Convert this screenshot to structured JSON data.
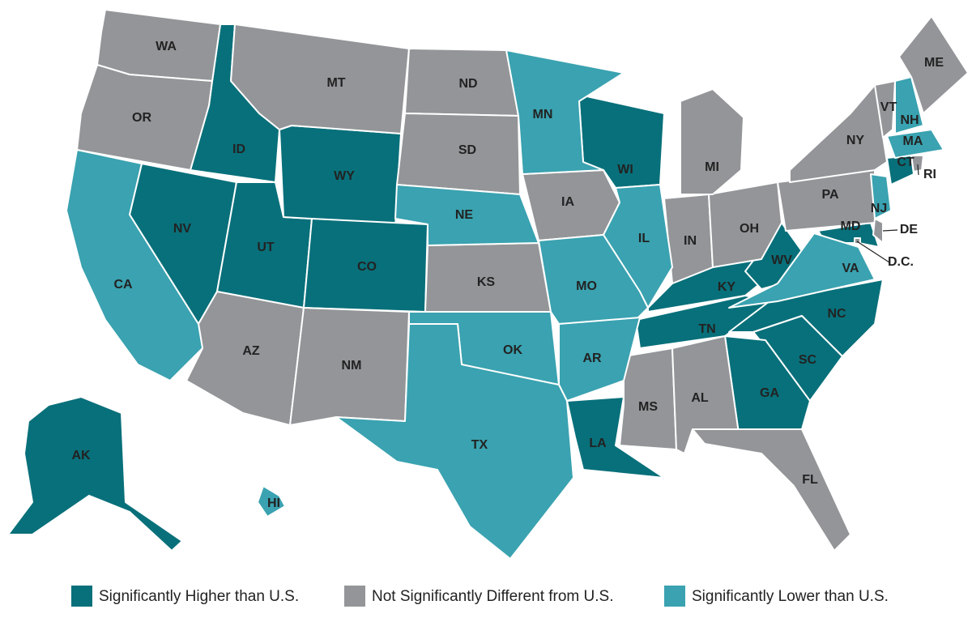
{
  "groups": [
    {
      "label": "Significantly Higher than U.S.",
      "color": "#08707a",
      "states": [
        "AK",
        "ID",
        "NV",
        "UT",
        "WY",
        "CO",
        "WI",
        "KY",
        "WV",
        "TN",
        "NC",
        "SC",
        "GA",
        "LA",
        "CT",
        "MD"
      ]
    },
    {
      "label": "Not Significantly Different from U.S.",
      "color": "#939598",
      "states": [
        "WA",
        "OR",
        "MT",
        "ND",
        "SD",
        "KS",
        "IA",
        "AZ",
        "NM",
        "MS",
        "AL",
        "FL",
        "IN",
        "OH",
        "MI",
        "PA",
        "NY",
        "VT",
        "ME",
        "DE",
        "RI",
        "D.C."
      ]
    },
    {
      "label": "Significantly Lower than U.S.",
      "color": "#3aa2b0",
      "states": [
        "CA",
        "NE",
        "MN",
        "IL",
        "MO",
        "OK",
        "AR",
        "TX",
        "VA",
        "NJ",
        "MA",
        "NH",
        "HI"
      ]
    }
  ]
}
